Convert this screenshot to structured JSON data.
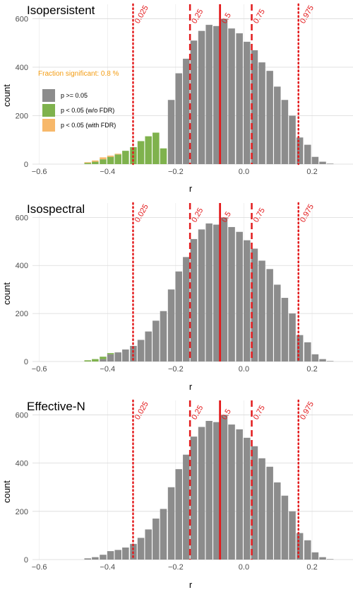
{
  "colors": {
    "ns": "#8c8c8c",
    "wo": "#7fb24d",
    "fdr": "#f7b86a",
    "quantile": "#e31a1c",
    "grid": "#d9d9d9",
    "annotation": "#f39c12"
  },
  "legend": {
    "items": [
      {
        "label": "p >= 0.05",
        "color_key": "ns"
      },
      {
        "label": "p < 0.05 (w/o FDR)",
        "color_key": "wo"
      },
      {
        "label": "p < 0.05 (with FDR)",
        "color_key": "fdr"
      }
    ]
  },
  "annotation": "Fraction significant: 0.8 %",
  "chart_data": [
    {
      "type": "bar",
      "title": "Isopersistent",
      "xlabel": "r",
      "ylabel": "count",
      "xlim": [
        -0.62,
        0.32
      ],
      "ylim": [
        0,
        660
      ],
      "bin_width": 0.0222,
      "x_ticks": [
        -0.6,
        -0.4,
        -0.2,
        0.0,
        0.2
      ],
      "x_tick_labels": [
        "−0.6",
        "−0.4",
        "−0.2",
        "0.0",
        "0.2"
      ],
      "y_ticks": [
        0,
        200,
        400,
        600
      ],
      "y_tick_labels": [
        "0",
        "200",
        "400",
        "600"
      ],
      "bin_centers": [
        -0.458,
        -0.436,
        -0.413,
        -0.391,
        -0.369,
        -0.347,
        -0.324,
        -0.302,
        -0.28,
        -0.258,
        -0.236,
        -0.213,
        -0.191,
        -0.169,
        -0.147,
        -0.124,
        -0.102,
        -0.08,
        -0.058,
        -0.036,
        -0.013,
        0.009,
        0.031,
        0.053,
        0.076,
        0.098,
        0.12,
        0.142,
        0.164,
        0.187,
        0.209,
        0.231,
        0.253
      ],
      "series": [
        {
          "name": "p >= 0.05",
          "color_key": "ns",
          "values": [
            0,
            0,
            0,
            0,
            0,
            0,
            0,
            0,
            0,
            0,
            0,
            265,
            375,
            435,
            510,
            550,
            575,
            570,
            600,
            560,
            540,
            505,
            470,
            420,
            385,
            320,
            265,
            200,
            110,
            80,
            30,
            10,
            2
          ]
        },
        {
          "name": "p < 0.05 (w/o FDR)",
          "color_key": "wo",
          "values": [
            5,
            10,
            20,
            30,
            40,
            55,
            70,
            95,
            115,
            130,
            65,
            0,
            0,
            0,
            0,
            0,
            0,
            0,
            0,
            0,
            0,
            0,
            0,
            0,
            0,
            0,
            0,
            0,
            0,
            0,
            0,
            0,
            0
          ]
        },
        {
          "name": "p < 0.05 (with FDR)",
          "color_key": "fdr",
          "values": [
            3,
            5,
            8,
            5,
            3,
            0,
            0,
            0,
            0,
            0,
            0,
            0,
            0,
            0,
            0,
            0,
            0,
            0,
            0,
            0,
            0,
            0,
            0,
            0,
            0,
            0,
            0,
            0,
            0,
            0,
            0,
            0,
            0
          ]
        }
      ],
      "quantiles": [
        {
          "label": "0.025",
          "x": -0.325,
          "style": "dotted"
        },
        {
          "label": "0.25",
          "x": -0.158,
          "style": "dashed"
        },
        {
          "label": "0.5",
          "x": -0.07,
          "style": "solid"
        },
        {
          "label": "0.75",
          "x": 0.023,
          "style": "dashed"
        },
        {
          "label": "0.975",
          "x": 0.16,
          "style": "dotted"
        }
      ]
    },
    {
      "type": "bar",
      "title": "Isospectral",
      "xlabel": "r",
      "ylabel": "count",
      "xlim": [
        -0.62,
        0.32
      ],
      "ylim": [
        0,
        660
      ],
      "bin_width": 0.0222,
      "x_ticks": [
        -0.6,
        -0.4,
        -0.2,
        0.0,
        0.2
      ],
      "x_tick_labels": [
        "−0.6",
        "−0.4",
        "−0.2",
        "0.0",
        "0.2"
      ],
      "y_ticks": [
        0,
        200,
        400,
        600
      ],
      "y_tick_labels": [
        "0",
        "200",
        "400",
        "600"
      ],
      "bin_centers": [
        -0.458,
        -0.436,
        -0.413,
        -0.391,
        -0.369,
        -0.347,
        -0.324,
        -0.302,
        -0.28,
        -0.258,
        -0.236,
        -0.213,
        -0.191,
        -0.169,
        -0.147,
        -0.124,
        -0.102,
        -0.08,
        -0.058,
        -0.036,
        -0.013,
        0.009,
        0.031,
        0.053,
        0.076,
        0.098,
        0.12,
        0.142,
        0.164,
        0.187,
        0.209,
        0.231,
        0.253
      ],
      "series": [
        {
          "name": "p >= 0.05",
          "color_key": "ns",
          "values": [
            0,
            0,
            10,
            30,
            38,
            50,
            65,
            90,
            125,
            170,
            210,
            300,
            375,
            435,
            510,
            550,
            575,
            570,
            600,
            560,
            540,
            505,
            470,
            420,
            385,
            320,
            265,
            200,
            110,
            80,
            30,
            10,
            2
          ]
        },
        {
          "name": "p < 0.05 (w/o FDR)",
          "color_key": "wo",
          "values": [
            5,
            10,
            10,
            5,
            0,
            0,
            0,
            0,
            0,
            0,
            0,
            0,
            0,
            0,
            0,
            0,
            0,
            0,
            0,
            0,
            0,
            0,
            0,
            0,
            0,
            0,
            0,
            0,
            0,
            0,
            0,
            0,
            0
          ]
        },
        {
          "name": "p < 0.05 (with FDR)",
          "color_key": "fdr",
          "values": [
            0,
            0,
            0,
            0,
            0,
            0,
            0,
            0,
            0,
            0,
            0,
            0,
            0,
            0,
            0,
            0,
            0,
            0,
            0,
            0,
            0,
            0,
            0,
            0,
            0,
            0,
            0,
            0,
            0,
            0,
            0,
            0,
            0
          ]
        }
      ],
      "quantiles": [
        {
          "label": "0.025",
          "x": -0.325,
          "style": "dotted"
        },
        {
          "label": "0.25",
          "x": -0.158,
          "style": "dashed"
        },
        {
          "label": "0.5",
          "x": -0.07,
          "style": "solid"
        },
        {
          "label": "0.75",
          "x": 0.023,
          "style": "dashed"
        },
        {
          "label": "0.975",
          "x": 0.16,
          "style": "dotted"
        }
      ]
    },
    {
      "type": "bar",
      "title": "Effective-N",
      "xlabel": "r",
      "ylabel": "count",
      "xlim": [
        -0.62,
        0.32
      ],
      "ylim": [
        0,
        660
      ],
      "bin_width": 0.0222,
      "x_ticks": [
        -0.6,
        -0.4,
        -0.2,
        0.0,
        0.2
      ],
      "x_tick_labels": [
        "−0.6",
        "−0.4",
        "−0.2",
        "0.0",
        "0.2"
      ],
      "y_ticks": [
        0,
        200,
        400,
        600
      ],
      "y_tick_labels": [
        "0",
        "200",
        "400",
        "600"
      ],
      "bin_centers": [
        -0.458,
        -0.436,
        -0.413,
        -0.391,
        -0.369,
        -0.347,
        -0.324,
        -0.302,
        -0.28,
        -0.258,
        -0.236,
        -0.213,
        -0.191,
        -0.169,
        -0.147,
        -0.124,
        -0.102,
        -0.08,
        -0.058,
        -0.036,
        -0.013,
        0.009,
        0.031,
        0.053,
        0.076,
        0.098,
        0.12,
        0.142,
        0.164,
        0.187,
        0.209,
        0.231,
        0.253
      ],
      "series": [
        {
          "name": "p >= 0.05",
          "color_key": "ns",
          "values": [
            5,
            10,
            20,
            35,
            40,
            50,
            65,
            90,
            125,
            170,
            210,
            300,
            375,
            435,
            510,
            550,
            575,
            570,
            600,
            560,
            540,
            505,
            470,
            420,
            385,
            320,
            265,
            200,
            110,
            80,
            30,
            10,
            2
          ]
        },
        {
          "name": "p < 0.05 (w/o FDR)",
          "color_key": "wo",
          "values": [
            0,
            0,
            0,
            0,
            0,
            0,
            0,
            0,
            0,
            0,
            0,
            0,
            0,
            0,
            0,
            0,
            0,
            0,
            0,
            0,
            0,
            0,
            0,
            0,
            0,
            0,
            0,
            0,
            0,
            0,
            0,
            0,
            0
          ]
        },
        {
          "name": "p < 0.05 (with FDR)",
          "color_key": "fdr",
          "values": [
            0,
            0,
            0,
            0,
            0,
            0,
            0,
            0,
            0,
            0,
            0,
            0,
            0,
            0,
            0,
            0,
            0,
            0,
            0,
            0,
            0,
            0,
            0,
            0,
            0,
            0,
            0,
            0,
            0,
            0,
            0,
            0,
            0
          ]
        }
      ],
      "quantiles": [
        {
          "label": "0.025",
          "x": -0.325,
          "style": "dotted"
        },
        {
          "label": "0.25",
          "x": -0.158,
          "style": "dashed"
        },
        {
          "label": "0.5",
          "x": -0.07,
          "style": "solid"
        },
        {
          "label": "0.75",
          "x": 0.023,
          "style": "dashed"
        },
        {
          "label": "0.975",
          "x": 0.16,
          "style": "dotted"
        }
      ]
    }
  ]
}
